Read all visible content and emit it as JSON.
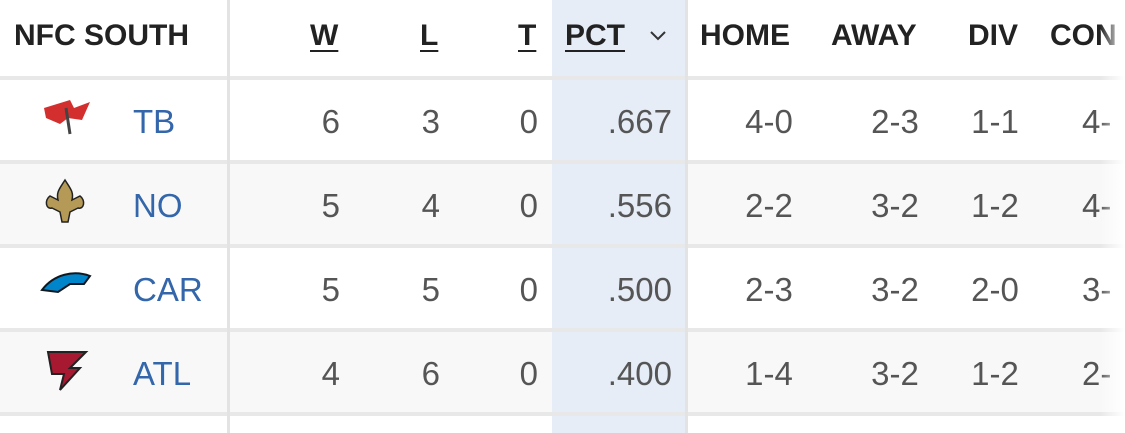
{
  "table": {
    "header": [
      "NFC SOUTH",
      "W",
      "L",
      "T",
      "PCT",
      "HOME",
      "AWAY",
      "DIV",
      "CON"
    ],
    "rows": [
      [
        "TB",
        "6",
        "3",
        "0",
        ".667",
        "4-0",
        "2-3",
        "1-1",
        "4-"
      ],
      [
        "NO",
        "5",
        "4",
        "0",
        ".556",
        "2-2",
        "3-2",
        "1-2",
        "4-"
      ],
      [
        "CAR",
        "5",
        "5",
        "0",
        ".500",
        "2-3",
        "3-2",
        "2-0",
        "3-"
      ],
      [
        "ATL",
        "4",
        "6",
        "0",
        ".400",
        "1-4",
        "3-2",
        "1-2",
        "2-"
      ]
    ]
  }
}
